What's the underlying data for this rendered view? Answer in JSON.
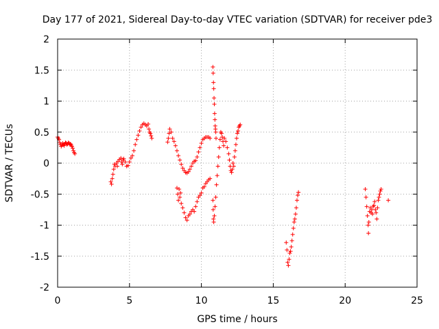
{
  "chart_data": {
    "type": "scatter",
    "title": "Day 177 of 2021, Sidereal Day-to-day VTEC variation (SDTVAR) for receiver pde3",
    "xlabel": "GPS time / hours",
    "ylabel": "SDTVAR / TECUs",
    "xlim": [
      0,
      25
    ],
    "ylim": [
      -2,
      2
    ],
    "x_ticks": [
      0,
      5,
      10,
      15,
      20,
      25
    ],
    "x_tick_labels": [
      "0",
      "5",
      "10",
      "15",
      "20",
      "25"
    ],
    "y_ticks": [
      -2,
      -1.5,
      -1,
      -0.5,
      0,
      0.5,
      1,
      1.5,
      2
    ],
    "y_tick_labels": [
      "-2",
      "-1.5",
      "-1",
      "-0.5",
      "0",
      "0.5",
      "1",
      "1.5",
      "2"
    ],
    "grid": true,
    "marker": "+",
    "marker_color": "#ff0000",
    "series": [
      {
        "name": "SDTVAR",
        "points": [
          [
            0.0,
            0.42
          ],
          [
            0.05,
            0.4
          ],
          [
            0.1,
            0.38
          ],
          [
            0.15,
            0.33
          ],
          [
            0.2,
            0.3
          ],
          [
            0.25,
            0.27
          ],
          [
            0.3,
            0.29
          ],
          [
            0.35,
            0.32
          ],
          [
            0.4,
            0.3
          ],
          [
            0.45,
            0.28
          ],
          [
            0.5,
            0.31
          ],
          [
            0.55,
            0.33
          ],
          [
            0.6,
            0.32
          ],
          [
            0.65,
            0.3
          ],
          [
            0.7,
            0.31
          ],
          [
            0.75,
            0.33
          ],
          [
            0.8,
            0.32
          ],
          [
            0.85,
            0.3
          ],
          [
            0.9,
            0.31
          ],
          [
            0.95,
            0.29
          ],
          [
            1.0,
            0.27
          ],
          [
            1.05,
            0.24
          ],
          [
            1.1,
            0.2
          ],
          [
            1.15,
            0.17
          ],
          [
            1.2,
            0.15
          ],
          [
            3.7,
            -0.3
          ],
          [
            3.75,
            -0.34
          ],
          [
            3.8,
            -0.25
          ],
          [
            3.85,
            -0.18
          ],
          [
            3.9,
            -0.1
          ],
          [
            3.95,
            -0.02
          ],
          [
            4.0,
            -0.05
          ],
          [
            4.1,
            0.0
          ],
          [
            4.15,
            -0.05
          ],
          [
            4.2,
            0.03
          ],
          [
            4.3,
            0.06
          ],
          [
            4.4,
            0.08
          ],
          [
            4.45,
            0.02
          ],
          [
            4.5,
            -0.02
          ],
          [
            4.55,
            0.05
          ],
          [
            4.6,
            0.07
          ],
          [
            4.7,
            0.02
          ],
          [
            4.8,
            -0.05
          ],
          [
            4.9,
            -0.04
          ],
          [
            5.0,
            0.02
          ],
          [
            5.1,
            0.08
          ],
          [
            5.2,
            0.12
          ],
          [
            5.3,
            0.2
          ],
          [
            5.4,
            0.3
          ],
          [
            5.5,
            0.38
          ],
          [
            5.6,
            0.45
          ],
          [
            5.7,
            0.52
          ],
          [
            5.8,
            0.58
          ],
          [
            5.9,
            0.62
          ],
          [
            6.0,
            0.64
          ],
          [
            6.1,
            0.62
          ],
          [
            6.2,
            0.6
          ],
          [
            6.3,
            0.63
          ],
          [
            6.35,
            0.55
          ],
          [
            6.4,
            0.5
          ],
          [
            6.45,
            0.48
          ],
          [
            6.5,
            0.44
          ],
          [
            6.55,
            0.4
          ],
          [
            7.65,
            0.34
          ],
          [
            7.7,
            0.4
          ],
          [
            7.75,
            0.48
          ],
          [
            7.8,
            0.55
          ],
          [
            7.9,
            0.5
          ],
          [
            8.0,
            0.4
          ],
          [
            8.1,
            0.35
          ],
          [
            8.2,
            0.28
          ],
          [
            8.3,
            0.2
          ],
          [
            8.4,
            0.12
          ],
          [
            8.5,
            0.05
          ],
          [
            8.6,
            -0.02
          ],
          [
            8.7,
            -0.08
          ],
          [
            8.8,
            -0.12
          ],
          [
            8.9,
            -0.15
          ],
          [
            9.0,
            -0.16
          ],
          [
            9.1,
            -0.14
          ],
          [
            9.2,
            -0.1
          ],
          [
            9.3,
            -0.05
          ],
          [
            9.4,
            0.0
          ],
          [
            9.5,
            0.03
          ],
          [
            9.6,
            0.04
          ],
          [
            9.7,
            0.1
          ],
          [
            9.8,
            0.18
          ],
          [
            9.9,
            0.25
          ],
          [
            10.0,
            0.32
          ],
          [
            10.1,
            0.38
          ],
          [
            10.2,
            0.4
          ],
          [
            10.3,
            0.42
          ],
          [
            10.4,
            0.42
          ],
          [
            10.5,
            0.42
          ],
          [
            10.6,
            0.4
          ],
          [
            8.3,
            -0.4
          ],
          [
            8.35,
            -0.5
          ],
          [
            8.4,
            -0.6
          ],
          [
            8.45,
            -0.42
          ],
          [
            8.5,
            -0.55
          ],
          [
            8.55,
            -0.48
          ],
          [
            8.6,
            -0.65
          ],
          [
            8.7,
            -0.72
          ],
          [
            8.8,
            -0.8
          ],
          [
            8.9,
            -0.88
          ],
          [
            9.0,
            -0.92
          ],
          [
            9.1,
            -0.85
          ],
          [
            9.2,
            -0.82
          ],
          [
            9.3,
            -0.78
          ],
          [
            9.4,
            -0.75
          ],
          [
            9.5,
            -0.78
          ],
          [
            9.6,
            -0.7
          ],
          [
            9.7,
            -0.62
          ],
          [
            9.8,
            -0.55
          ],
          [
            9.9,
            -0.52
          ],
          [
            10.0,
            -0.48
          ],
          [
            10.1,
            -0.4
          ],
          [
            10.2,
            -0.38
          ],
          [
            10.3,
            -0.33
          ],
          [
            10.4,
            -0.3
          ],
          [
            10.5,
            -0.27
          ],
          [
            10.6,
            -0.25
          ],
          [
            10.8,
            1.55
          ],
          [
            10.82,
            1.45
          ],
          [
            10.84,
            1.3
          ],
          [
            10.86,
            1.2
          ],
          [
            10.88,
            1.05
          ],
          [
            10.9,
            0.95
          ],
          [
            10.92,
            0.8
          ],
          [
            10.94,
            0.7
          ],
          [
            10.96,
            0.6
          ],
          [
            10.98,
            0.55
          ],
          [
            11.0,
            0.5
          ],
          [
            11.02,
            0.4
          ],
          [
            10.8,
            -0.6
          ],
          [
            10.82,
            -0.75
          ],
          [
            10.84,
            -0.9
          ],
          [
            10.86,
            -0.95
          ],
          [
            10.9,
            -0.85
          ],
          [
            10.95,
            -0.7
          ],
          [
            11.0,
            -0.55
          ],
          [
            11.05,
            -0.35
          ],
          [
            11.1,
            -0.2
          ],
          [
            11.15,
            -0.05
          ],
          [
            11.2,
            0.1
          ],
          [
            11.25,
            0.25
          ],
          [
            11.3,
            0.38
          ],
          [
            11.35,
            0.5
          ],
          [
            11.4,
            0.48
          ],
          [
            11.45,
            0.42
          ],
          [
            11.5,
            0.35
          ],
          [
            11.55,
            0.28
          ],
          [
            11.6,
            0.4
          ],
          [
            11.7,
            0.35
          ],
          [
            11.8,
            0.25
          ],
          [
            11.9,
            0.15
          ],
          [
            11.95,
            0.05
          ],
          [
            12.0,
            -0.05
          ],
          [
            12.05,
            -0.12
          ],
          [
            12.1,
            -0.15
          ],
          [
            12.15,
            -0.1
          ],
          [
            12.2,
            0.0
          ],
          [
            12.25,
            -0.05
          ],
          [
            12.3,
            0.1
          ],
          [
            12.35,
            0.2
          ],
          [
            12.4,
            0.3
          ],
          [
            12.45,
            0.4
          ],
          [
            12.5,
            0.48
          ],
          [
            12.55,
            0.52
          ],
          [
            12.6,
            0.58
          ],
          [
            12.65,
            0.6
          ],
          [
            12.7,
            0.62
          ],
          [
            15.9,
            -1.28
          ],
          [
            15.95,
            -1.4
          ],
          [
            16.0,
            -1.6
          ],
          [
            16.05,
            -1.65
          ],
          [
            16.1,
            -1.55
          ],
          [
            16.15,
            -1.45
          ],
          [
            16.2,
            -1.42
          ],
          [
            16.25,
            -1.35
          ],
          [
            16.3,
            -1.25
          ],
          [
            16.35,
            -1.15
          ],
          [
            16.4,
            -1.05
          ],
          [
            16.45,
            -0.95
          ],
          [
            16.5,
            -0.9
          ],
          [
            16.55,
            -0.82
          ],
          [
            16.6,
            -0.72
          ],
          [
            16.65,
            -0.6
          ],
          [
            16.7,
            -0.52
          ],
          [
            16.75,
            -0.47
          ],
          [
            21.4,
            -0.42
          ],
          [
            21.45,
            -0.55
          ],
          [
            21.5,
            -0.7
          ],
          [
            21.55,
            -0.85
          ],
          [
            21.6,
            -1.0
          ],
          [
            21.62,
            -1.13
          ],
          [
            21.65,
            -0.95
          ],
          [
            21.7,
            -0.78
          ],
          [
            21.75,
            -0.72
          ],
          [
            21.8,
            -0.8
          ],
          [
            21.85,
            -0.75
          ],
          [
            21.9,
            -0.82
          ],
          [
            21.95,
            -0.7
          ],
          [
            22.0,
            -0.68
          ],
          [
            22.05,
            -0.62
          ],
          [
            22.1,
            -0.75
          ],
          [
            22.15,
            -0.8
          ],
          [
            22.2,
            -0.9
          ],
          [
            22.25,
            -0.72
          ],
          [
            22.3,
            -0.6
          ],
          [
            22.35,
            -0.55
          ],
          [
            22.4,
            -0.5
          ],
          [
            22.45,
            -0.45
          ],
          [
            22.5,
            -0.42
          ],
          [
            23.0,
            -0.6
          ]
        ]
      }
    ]
  }
}
